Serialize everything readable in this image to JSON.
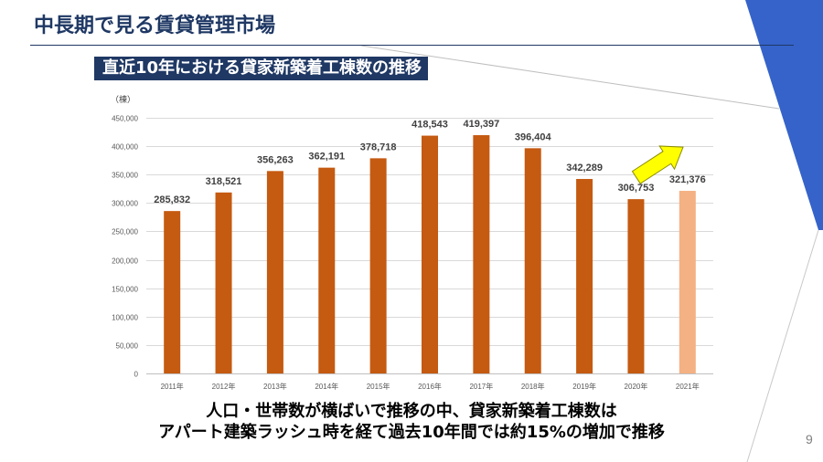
{
  "slide": {
    "title": "中長期で見る賃貸管理市場",
    "subtitle": "直近10年における貸家新築着工棟数の推移",
    "caption": {
      "line1": "人口・世帯数が横ばいで推移の中、貸家新築着工棟数は",
      "line2": "アパート建築ラッシュ時を経て過去10年間では約15%の増加で推移"
    },
    "page_number": "9"
  },
  "colors": {
    "navy": "#1F3864",
    "accent_blue": "#3563C9",
    "bar": "#C55A11",
    "bar_highlight": "#F4B183",
    "arrow_fill": "#FFFF00",
    "arrow_stroke": "#8C8C00",
    "gridline": "#D9D9D9",
    "baseline": "#BFBFBF",
    "label_text": "#404040",
    "tick_text": "#595959"
  },
  "icons": {
    "annotation_arrow": "yellow-arrow-up-right-icon"
  },
  "chart_data": {
    "type": "bar",
    "ylabel": "（棟）",
    "categories": [
      "2011年",
      "2012年",
      "2013年",
      "2014年",
      "2015年",
      "2016年",
      "2017年",
      "2018年",
      "2019年",
      "2020年",
      "2021年"
    ],
    "values": [
      285832,
      318521,
      356263,
      362191,
      378718,
      418543,
      419397,
      396404,
      342289,
      306753,
      321376
    ],
    "data_labels": [
      "285,832",
      "318,521",
      "356,263",
      "362,191",
      "378,718",
      "418,543",
      "419,397",
      "396,404",
      "342,289",
      "306,753",
      "321,376"
    ],
    "bar_colors": [
      "#C55A11",
      "#C55A11",
      "#C55A11",
      "#C55A11",
      "#C55A11",
      "#C55A11",
      "#C55A11",
      "#C55A11",
      "#C55A11",
      "#C55A11",
      "#F4B183"
    ],
    "ylim": [
      0,
      450000
    ],
    "yticks": [
      0,
      50000,
      100000,
      150000,
      200000,
      250000,
      300000,
      350000,
      400000,
      450000
    ],
    "ytick_labels": [
      "0",
      "50,000",
      "100,000",
      "150,000",
      "200,000",
      "250,000",
      "300,000",
      "350,000",
      "400,000",
      "450,000"
    ],
    "grid": true
  }
}
